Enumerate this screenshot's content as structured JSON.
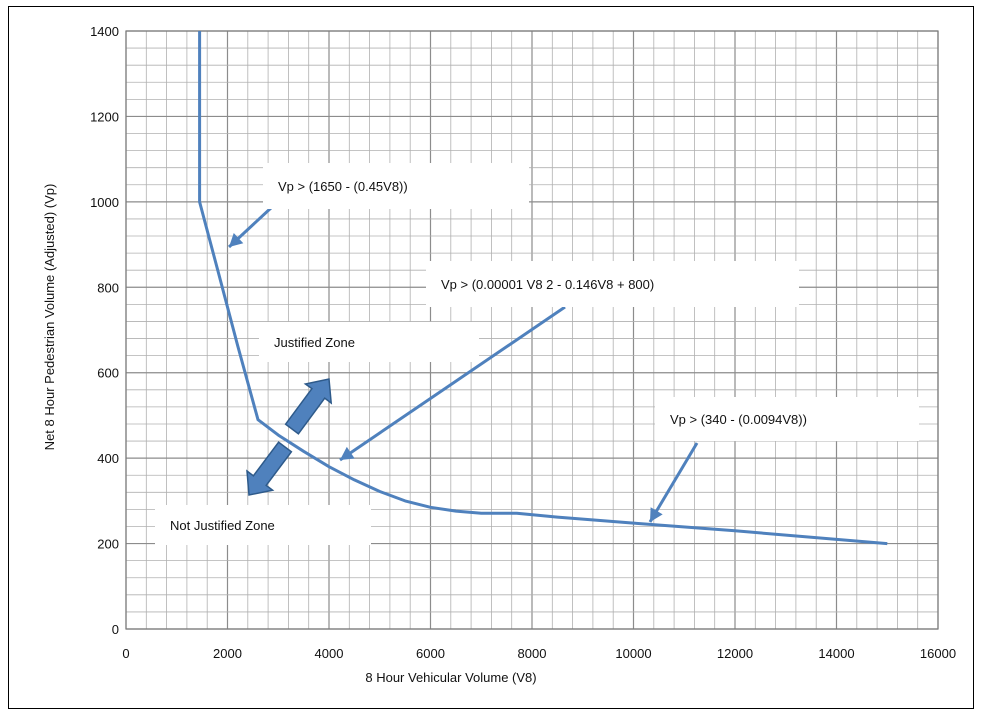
{
  "chart_data": {
    "type": "line",
    "xlabel": "8 Hour Vehicular Volume (V8)",
    "ylabel": "Net 8 Hour Pedestrian Volume (Adjusted) (Vp)",
    "xlim": [
      0,
      16000
    ],
    "ylim": [
      0,
      1400
    ],
    "x_ticks": [
      0,
      2000,
      4000,
      6000,
      8000,
      10000,
      12000,
      14000,
      16000
    ],
    "y_ticks": [
      0,
      200,
      400,
      600,
      800,
      1000,
      1200,
      1400
    ],
    "grid": true,
    "line_color": "#4f81bd",
    "series": [
      {
        "name": "",
        "x": [
          1450,
          1450,
          1800,
          2200,
          2600,
          3000,
          3500,
          4000,
          4500,
          5000,
          5500,
          6000,
          6500,
          7000,
          7700,
          8500,
          10000,
          12000,
          15000
        ],
        "y": [
          1400,
          1000,
          843,
          663,
          490,
          454,
          416,
          380,
          349,
          322,
          300,
          285,
          276,
          271,
          271,
          262,
          248,
          230,
          200
        ]
      }
    ],
    "annotations": [
      {
        "key": "eq1",
        "text": "Vp > (1650 - (0.45V8))"
      },
      {
        "key": "eq2",
        "text": "Vp > (0.00001 V8 2 - 0.146V8 + 800)"
      },
      {
        "key": "eq3",
        "text": "Vp > (340 - (0.0094V8))"
      },
      {
        "key": "zone_justified",
        "text": "Justified Zone"
      },
      {
        "key": "zone_not_justified",
        "text": "Not Justified Zone"
      }
    ]
  }
}
